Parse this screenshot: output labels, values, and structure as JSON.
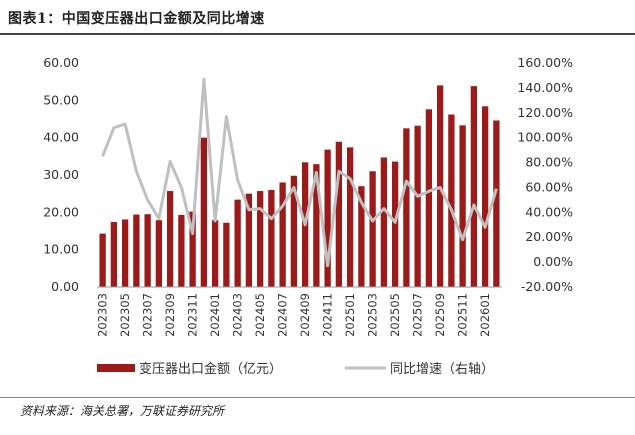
{
  "header": {
    "title": "图表1：中国变压器出口金额及同比增速"
  },
  "footer": {
    "source": "资料来源：海关总署，万联证券研究所"
  },
  "chart_data": {
    "type": "bar",
    "title": "中国变压器出口金额及同比增速",
    "categories": [
      "202303",
      "202304",
      "202305",
      "202306",
      "202307",
      "202308",
      "202309",
      "202310",
      "202311",
      "202312",
      "202401",
      "202402",
      "202403",
      "202404",
      "202405",
      "202406",
      "202407",
      "202408",
      "202409",
      "202410",
      "202411",
      "202412",
      "202501",
      "202502",
      "202503",
      "202504",
      "202505",
      "202506",
      "202507",
      "202508",
      "202509",
      "202510",
      "202511",
      "202512",
      "202601",
      "202602"
    ],
    "x_tick_labels": [
      "202303",
      "202305",
      "202307",
      "202309",
      "202311",
      "202401",
      "202403",
      "202405",
      "202407",
      "202409",
      "202411",
      "202501",
      "202503",
      "202505",
      "202507",
      "202509",
      "202511",
      "202601"
    ],
    "series": [
      {
        "name": "变压器出口金额（亿元）",
        "type": "bar",
        "axis": "left",
        "color": "#9B1B1B",
        "values": [
          14.3,
          17.4,
          18.1,
          19.4,
          19.5,
          17.9,
          25.7,
          19.3,
          20.2,
          40.0,
          17.9,
          17.2,
          23.4,
          25.0,
          25.7,
          26.0,
          28.0,
          29.8,
          33.4,
          32.9,
          36.8,
          38.9,
          37.4,
          27.0,
          31.0,
          34.7,
          33.6,
          42.5,
          43.2,
          47.6,
          54.0,
          46.2,
          43.3,
          53.8,
          48.4,
          44.6
        ]
      },
      {
        "name": "同比增速（右轴）",
        "type": "line",
        "axis": "right",
        "color": "#C0C0C0",
        "values": [
          85,
          108,
          111,
          73,
          50,
          35,
          81,
          60,
          23,
          147,
          33,
          117,
          66,
          42,
          43,
          35,
          45,
          60,
          30,
          72,
          -3,
          73,
          67,
          48,
          33,
          43,
          32,
          65,
          53,
          57,
          60,
          42,
          18,
          46,
          28,
          59
        ]
      }
    ],
    "y_left": {
      "min": 0,
      "max": 60,
      "ticks": [
        "0.00",
        "10.00",
        "20.00",
        "30.00",
        "40.00",
        "50.00",
        "60.00"
      ]
    },
    "y_right": {
      "min": -20,
      "max": 160,
      "ticks": [
        "-20.00%",
        "0.00%",
        "20.00%",
        "40.00%",
        "60.00%",
        "80.00%",
        "100.00%",
        "120.00%",
        "140.00%",
        "160.00%"
      ]
    },
    "legend": {
      "bar_label": "变压器出口金额（亿元）",
      "line_label": "同比增速（右轴）",
      "position": "bottom"
    },
    "grid": false
  }
}
